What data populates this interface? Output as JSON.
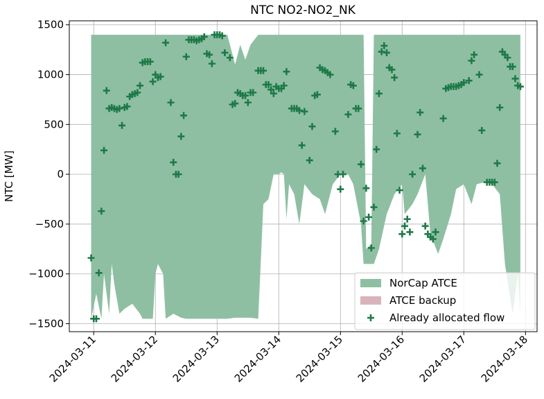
{
  "chart_data": {
    "type": "area",
    "title": "NTC NO2-NO2_NK",
    "ylabel": "NTC [MW]",
    "xlim": [
      "2024-03-10 14:30",
      "2024-03-18 04:30"
    ],
    "xticks": [
      "2024-03-11",
      "2024-03-12",
      "2024-03-13",
      "2024-03-14",
      "2024-03-15",
      "2024-03-16",
      "2024-03-17",
      "2024-03-18"
    ],
    "ylim": [
      -1580,
      1540
    ],
    "yticks": [
      {
        "value": -1500,
        "label": "−1500"
      },
      {
        "value": -1000,
        "label": "−1000"
      },
      {
        "value": -500,
        "label": "−500"
      },
      0,
      500,
      1000,
      1500
    ],
    "grid": true,
    "legend": "lower right",
    "series": [
      {
        "name": "NorCap ATCE",
        "type": "area",
        "color": "#8fbfa2",
        "x": [
          "2024-03-10 23:00",
          "2024-03-11 01:00",
          "2024-03-11 03:00",
          "2024-03-11 04:00",
          "2024-03-11 06:00",
          "2024-03-11 07:00",
          "2024-03-11 08:00",
          "2024-03-11 10:00",
          "2024-03-11 12:00",
          "2024-03-11 15:00",
          "2024-03-11 18:00",
          "2024-03-11 19:00",
          "2024-03-11 23:00",
          "2024-03-12 00:00",
          "2024-03-12 01:00",
          "2024-03-12 03:00",
          "2024-03-12 04:00",
          "2024-03-12 07:00",
          "2024-03-12 10:00",
          "2024-03-12 12:00",
          "2024-03-13 00:00",
          "2024-03-13 04:00",
          "2024-03-13 07:00",
          "2024-03-13 09:00",
          "2024-03-13 11:00",
          "2024-03-13 13:00",
          "2024-03-13 16:00",
          "2024-03-13 18:00",
          "2024-03-13 20:00",
          "2024-03-13 22:00",
          "2024-03-14 00:00",
          "2024-03-14 01:00",
          "2024-03-14 02:00",
          "2024-03-14 03:00",
          "2024-03-14 04:00",
          "2024-03-14 06:00",
          "2024-03-14 08:00",
          "2024-03-14 10:00",
          "2024-03-14 13:00",
          "2024-03-14 16:00",
          "2024-03-14 18:00",
          "2024-03-14 21:00",
          "2024-03-15 00:00",
          "2024-03-15 03:00",
          "2024-03-15 05:00",
          "2024-03-15 08:00",
          "2024-03-15 09:00",
          "2024-03-15 10:00",
          "2024-03-15 12:00",
          "2024-03-15 13:00",
          "2024-03-15 15:00",
          "2024-03-15 18:00",
          "2024-03-15 21:00",
          "2024-03-16 00:00",
          "2024-03-16 01:00",
          "2024-03-16 04:00",
          "2024-03-16 06:00",
          "2024-03-16 09:00",
          "2024-03-16 11:00",
          "2024-03-16 14:00",
          "2024-03-16 16:00",
          "2024-03-16 19:00",
          "2024-03-16 21:00",
          "2024-03-17 00:00",
          "2024-03-17 03:00",
          "2024-03-17 05:00",
          "2024-03-17 08:00",
          "2024-03-17 11:00",
          "2024-03-17 14:00",
          "2024-03-17 16:00",
          "2024-03-17 19:00",
          "2024-03-17 21:00",
          "2024-03-17 22:00"
        ],
        "lower": [
          -1450,
          -1200,
          -1450,
          -1000,
          -1400,
          -900,
          -1100,
          -1400,
          -1350,
          -1300,
          -1400,
          -1450,
          -1450,
          -1000,
          -900,
          -1000,
          -1450,
          -1400,
          -1440,
          -1450,
          -1450,
          -1450,
          -1440,
          -1440,
          -1440,
          -1440,
          -1450,
          -300,
          -250,
          0,
          0,
          20,
          0,
          -450,
          -100,
          -200,
          -500,
          -100,
          -200,
          -250,
          -400,
          -100,
          0,
          0,
          -100,
          -500,
          -900,
          -900,
          -900,
          -900,
          -750,
          -400,
          -200,
          -100,
          -400,
          -300,
          -200,
          0,
          -600,
          -800,
          -650,
          -400,
          -150,
          -100,
          -300,
          -100,
          -80,
          -100,
          -200,
          -900,
          -1400,
          -1000,
          -1400
        ],
        "upper": [
          1400,
          1400,
          1400,
          1400,
          1400,
          1400,
          1400,
          1400,
          1400,
          1400,
          1400,
          1400,
          1400,
          1400,
          1400,
          1400,
          1400,
          1400,
          1400,
          1400,
          1400,
          1400,
          1100,
          1300,
          1150,
          1300,
          1400,
          1400,
          1400,
          1400,
          1400,
          1400,
          1400,
          1400,
          1400,
          1400,
          1400,
          1400,
          1400,
          1400,
          1400,
          1400,
          1400,
          1400,
          1400,
          1400,
          1400,
          -750,
          -700,
          1400,
          1400,
          1400,
          1400,
          1400,
          1400,
          1400,
          1400,
          1400,
          1400,
          1400,
          1400,
          1400,
          1400,
          1400,
          1400,
          1400,
          1400,
          1400,
          1400,
          1400,
          1400,
          1400,
          1400
        ]
      },
      {
        "name": "ATCE backup",
        "type": "area",
        "color": "#d9b3bb"
      },
      {
        "name": "Already allocated flow",
        "type": "scatter",
        "color": "#1d7a48",
        "x": [
          "2024-03-10 23:00",
          "2024-03-11 00:00",
          "2024-03-11 01:00",
          "2024-03-11 02:00",
          "2024-03-11 03:00",
          "2024-03-11 04:00",
          "2024-03-11 05:00",
          "2024-03-11 06:00",
          "2024-03-11 07:00",
          "2024-03-11 08:00",
          "2024-03-11 09:00",
          "2024-03-11 10:00",
          "2024-03-11 11:00",
          "2024-03-11 12:00",
          "2024-03-11 13:00",
          "2024-03-11 14:00",
          "2024-03-11 15:00",
          "2024-03-11 16:00",
          "2024-03-11 17:00",
          "2024-03-11 18:00",
          "2024-03-11 19:00",
          "2024-03-11 20:00",
          "2024-03-11 21:00",
          "2024-03-11 22:00",
          "2024-03-11 23:00",
          "2024-03-12 00:00",
          "2024-03-12 01:00",
          "2024-03-12 02:00",
          "2024-03-12 04:00",
          "2024-03-12 06:00",
          "2024-03-12 07:00",
          "2024-03-12 08:00",
          "2024-03-12 09:00",
          "2024-03-12 10:00",
          "2024-03-12 11:00",
          "2024-03-12 12:00",
          "2024-03-12 13:00",
          "2024-03-12 14:00",
          "2024-03-12 15:00",
          "2024-03-12 16:00",
          "2024-03-12 17:00",
          "2024-03-12 18:00",
          "2024-03-12 19:00",
          "2024-03-12 20:00",
          "2024-03-12 21:00",
          "2024-03-12 22:00",
          "2024-03-12 23:00",
          "2024-03-13 00:00",
          "2024-03-13 01:00",
          "2024-03-13 02:00",
          "2024-03-13 03:00",
          "2024-03-13 05:00",
          "2024-03-13 06:00",
          "2024-03-13 07:00",
          "2024-03-13 08:00",
          "2024-03-13 09:00",
          "2024-03-13 10:00",
          "2024-03-13 11:00",
          "2024-03-13 12:00",
          "2024-03-13 13:00",
          "2024-03-13 14:00",
          "2024-03-13 16:00",
          "2024-03-13 17:00",
          "2024-03-13 18:00",
          "2024-03-13 19:00",
          "2024-03-13 20:00",
          "2024-03-13 21:00",
          "2024-03-13 22:00",
          "2024-03-13 23:00",
          "2024-03-14 00:00",
          "2024-03-14 01:00",
          "2024-03-14 02:00",
          "2024-03-14 03:00",
          "2024-03-14 05:00",
          "2024-03-14 06:00",
          "2024-03-14 07:00",
          "2024-03-14 08:00",
          "2024-03-14 09:00",
          "2024-03-14 10:00",
          "2024-03-14 12:00",
          "2024-03-14 13:00",
          "2024-03-14 14:00",
          "2024-03-14 15:00",
          "2024-03-14 16:00",
          "2024-03-14 17:00",
          "2024-03-14 18:00",
          "2024-03-14 19:00",
          "2024-03-14 20:00",
          "2024-03-14 22:00",
          "2024-03-14 23:00",
          "2024-03-15 00:00",
          "2024-03-15 01:00",
          "2024-03-15 03:00",
          "2024-03-15 04:00",
          "2024-03-15 05:00",
          "2024-03-15 06:00",
          "2024-03-15 07:00",
          "2024-03-15 08:00",
          "2024-03-15 09:00",
          "2024-03-15 10:00",
          "2024-03-15 11:00",
          "2024-03-15 12:00",
          "2024-03-15 13:00",
          "2024-03-15 14:00",
          "2024-03-15 15:00",
          "2024-03-15 16:00",
          "2024-03-15 17:00",
          "2024-03-15 18:00",
          "2024-03-15 19:00",
          "2024-03-15 20:00",
          "2024-03-15 21:00",
          "2024-03-15 22:00",
          "2024-03-15 23:00",
          "2024-03-16 00:00",
          "2024-03-16 01:00",
          "2024-03-16 02:00",
          "2024-03-16 03:00",
          "2024-03-16 04:00",
          "2024-03-16 06:00",
          "2024-03-16 07:00",
          "2024-03-16 08:00",
          "2024-03-16 09:00",
          "2024-03-16 10:00",
          "2024-03-16 11:00",
          "2024-03-16 12:00",
          "2024-03-16 13:00",
          "2024-03-16 16:00",
          "2024-03-16 17:00",
          "2024-03-16 18:00",
          "2024-03-16 19:00",
          "2024-03-16 20:00",
          "2024-03-16 21:00",
          "2024-03-16 22:00",
          "2024-03-16 23:00",
          "2024-03-17 00:00",
          "2024-03-17 02:00",
          "2024-03-17 03:00",
          "2024-03-17 04:00",
          "2024-03-17 06:00",
          "2024-03-17 07:00",
          "2024-03-17 09:00",
          "2024-03-17 10:00",
          "2024-03-17 11:00",
          "2024-03-17 12:00",
          "2024-03-17 13:00",
          "2024-03-17 14:00",
          "2024-03-17 15:00",
          "2024-03-17 16:00",
          "2024-03-17 17:00",
          "2024-03-17 18:00",
          "2024-03-17 19:00",
          "2024-03-17 20:00",
          "2024-03-17 21:00",
          "2024-03-17 22:00"
        ],
        "values": [
          -840,
          -1450,
          -1450,
          -990,
          -370,
          240,
          840,
          660,
          670,
          660,
          650,
          660,
          490,
          670,
          680,
          780,
          800,
          810,
          820,
          890,
          1120,
          1130,
          1130,
          1130,
          930,
          1000,
          970,
          980,
          1320,
          720,
          120,
          0,
          0,
          380,
          590,
          1180,
          1350,
          1350,
          1350,
          1340,
          1350,
          1360,
          1380,
          1210,
          1200,
          1110,
          1400,
          1400,
          1400,
          1390,
          1220,
          1170,
          700,
          710,
          820,
          810,
          790,
          790,
          720,
          820,
          820,
          1040,
          1040,
          1040,
          900,
          900,
          850,
          810,
          880,
          860,
          860,
          890,
          1030,
          660,
          660,
          660,
          640,
          290,
          630,
          140,
          480,
          790,
          800,
          1070,
          1050,
          1040,
          1020,
          1000,
          430,
          0,
          -150,
          0,
          600,
          900,
          890,
          660,
          660,
          100,
          -470,
          -140,
          -430,
          -740,
          -330,
          250,
          810,
          1230,
          1290,
          1220,
          1070,
          1050,
          970,
          410,
          -160,
          -600,
          -520,
          -450,
          -580,
          0,
          400,
          620,
          60,
          -520,
          -600,
          -630,
          -650,
          -580,
          560,
          860,
          870,
          880,
          880,
          880,
          890,
          900,
          920,
          940,
          1140,
          1200,
          1000,
          440,
          -80,
          -80,
          -80,
          -80,
          110,
          670,
          1230,
          1200,
          1170,
          1080,
          1080,
          960,
          890,
          880
        ]
      }
    ]
  }
}
